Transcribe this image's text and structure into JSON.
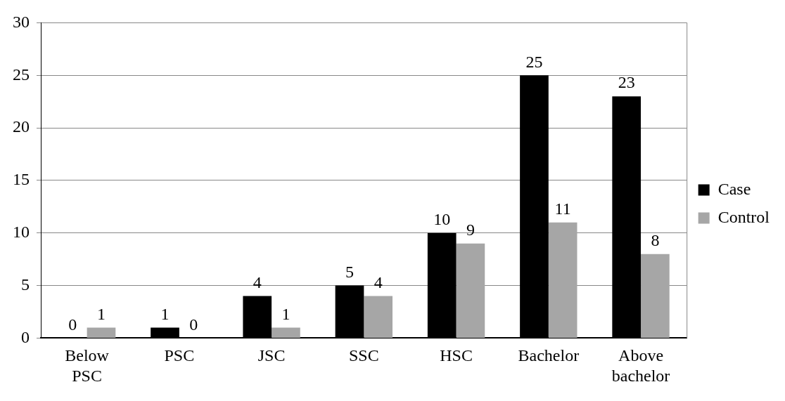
{
  "chart_data": {
    "type": "bar",
    "categories": [
      "Below PSC",
      "PSC",
      "JSC",
      "SSC",
      "HSC",
      "Bachelor",
      "Above bachelor"
    ],
    "series": [
      {
        "name": "Case",
        "color": "#000000",
        "values": [
          0,
          1,
          4,
          5,
          10,
          25,
          23
        ]
      },
      {
        "name": "Control",
        "color": "#a6a6a6",
        "values": [
          1,
          0,
          1,
          4,
          9,
          11,
          8
        ]
      }
    ],
    "ylim": [
      0,
      30
    ],
    "yticks": [
      0,
      5,
      10,
      15,
      20,
      25,
      30
    ],
    "grid": "y",
    "legend": "right",
    "data_labels": true
  }
}
